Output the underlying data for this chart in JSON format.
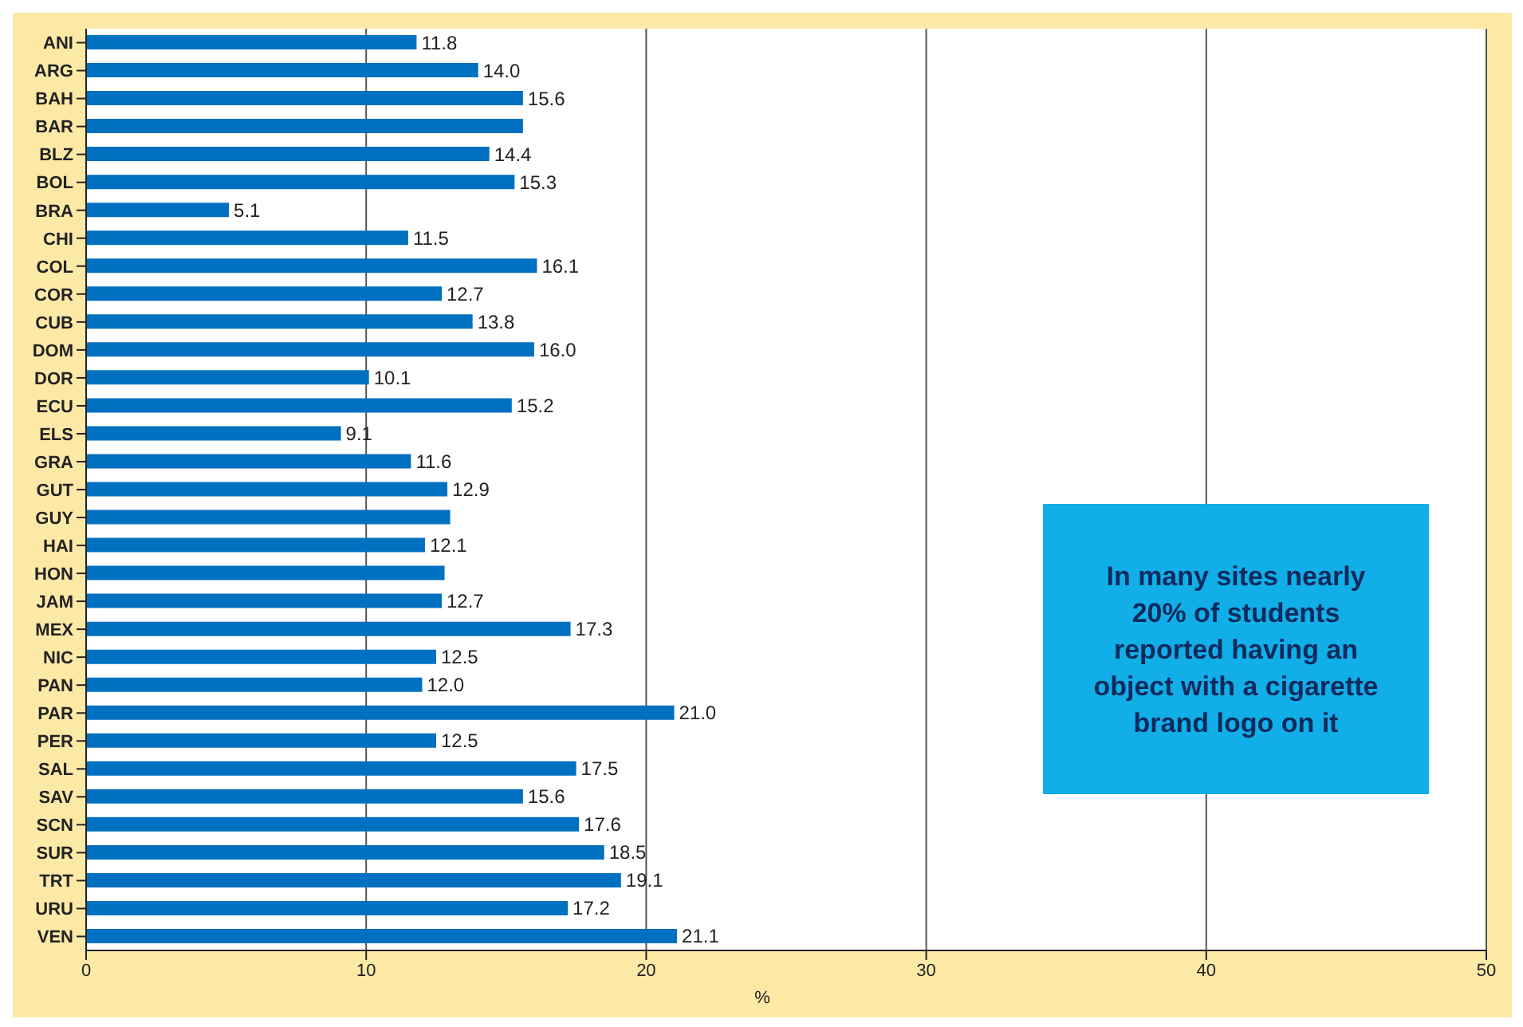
{
  "chart_data": {
    "type": "bar",
    "orientation": "horizontal",
    "xlabel": "%",
    "categories": [
      "ANI",
      "ARG",
      "BAH",
      "BAR",
      "BLZ",
      "BOL",
      "BRA",
      "CHI",
      "COL",
      "COR",
      "CUB",
      "DOM",
      "DOR",
      "ECU",
      "ELS",
      "GRA",
      "GUT",
      "GUY",
      "HAI",
      "HON",
      "JAM",
      "MEX",
      "NIC",
      "PAN",
      "PAR",
      "PER",
      "SAL",
      "SAV",
      "SCN",
      "SUR",
      "TRT",
      "URU",
      "VEN"
    ],
    "values": [
      11.8,
      14.0,
      15.6,
      15.6,
      14.4,
      15.3,
      5.1,
      11.5,
      16.1,
      12.7,
      13.8,
      16.0,
      10.1,
      15.2,
      9.1,
      11.6,
      12.9,
      13.0,
      12.1,
      12.8,
      12.7,
      17.3,
      12.5,
      12.0,
      21.0,
      12.5,
      17.5,
      15.6,
      17.6,
      18.5,
      19.1,
      17.2,
      21.1
    ],
    "value_labels": [
      "11.8",
      "14.0",
      "15.6",
      null,
      "14.4",
      "15.3",
      "5.1",
      "11.5",
      "16.1",
      "12.7",
      "13.8",
      "16.0",
      "10.1",
      "15.2",
      "9.1",
      "11.6",
      "12.9",
      null,
      "12.1",
      null,
      "12.7",
      "17.3",
      "12.5",
      "12.0",
      "21.0",
      "12.5",
      "17.5",
      "15.6",
      "17.6",
      "18.5",
      "19.1",
      "17.2",
      "21.1"
    ],
    "color": "#0070c0",
    "xlim": [
      0,
      50
    ],
    "xticks": [
      0,
      10,
      20,
      30,
      40,
      50
    ],
    "grid": "x",
    "legend": false,
    "annotations": [
      "In many sites nearly 20% of students reported having an object with a cigarette brand logo on it"
    ]
  }
}
